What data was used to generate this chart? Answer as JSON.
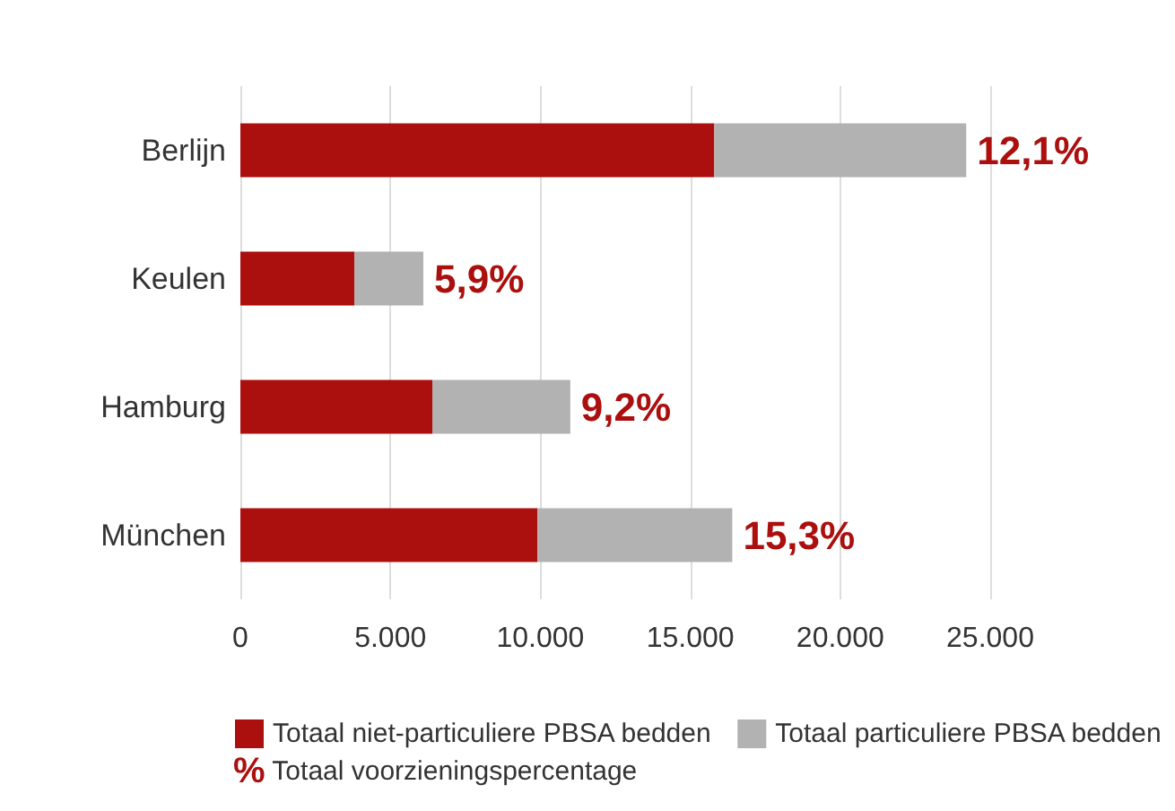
{
  "chart_data": {
    "type": "bar",
    "orientation": "horizontal",
    "stacked": true,
    "categories": [
      "Berlijn",
      "Keulen",
      "Hamburg",
      "München"
    ],
    "series": [
      {
        "name": "Totaal niet-particuliere PBSA bedden",
        "color": "#ab0f0e",
        "values": [
          15800,
          3800,
          6400,
          9900
        ]
      },
      {
        "name": "Totaal particuliere PBSA bedden",
        "color": "#b2b2b2",
        "values": [
          8400,
          2300,
          4600,
          6500
        ]
      }
    ],
    "xlim": [
      0,
      25000
    ],
    "xticks": [
      0,
      {
        "value": 5000,
        "label": "5.000"
      },
      {
        "value": 10000,
        "label": "10.000"
      },
      {
        "value": 15000,
        "label": "15.000"
      },
      {
        "value": 20000,
        "label": "20.000"
      },
      {
        "value": 25000,
        "label": "25.000"
      }
    ],
    "grid": "x",
    "legend": "bottom",
    "annotations": [
      {
        "text": "12,1%",
        "x": 24200,
        "y": "Berlijn"
      },
      {
        "text": "5,9%",
        "x": 6100,
        "y": "Keulen"
      },
      {
        "text": "9,2%",
        "x": 11000,
        "y": "Hamburg"
      },
      {
        "text": "15,3%",
        "x": 16400,
        "y": "München"
      },
      "% Totaal voorzieningspercentage"
    ]
  }
}
